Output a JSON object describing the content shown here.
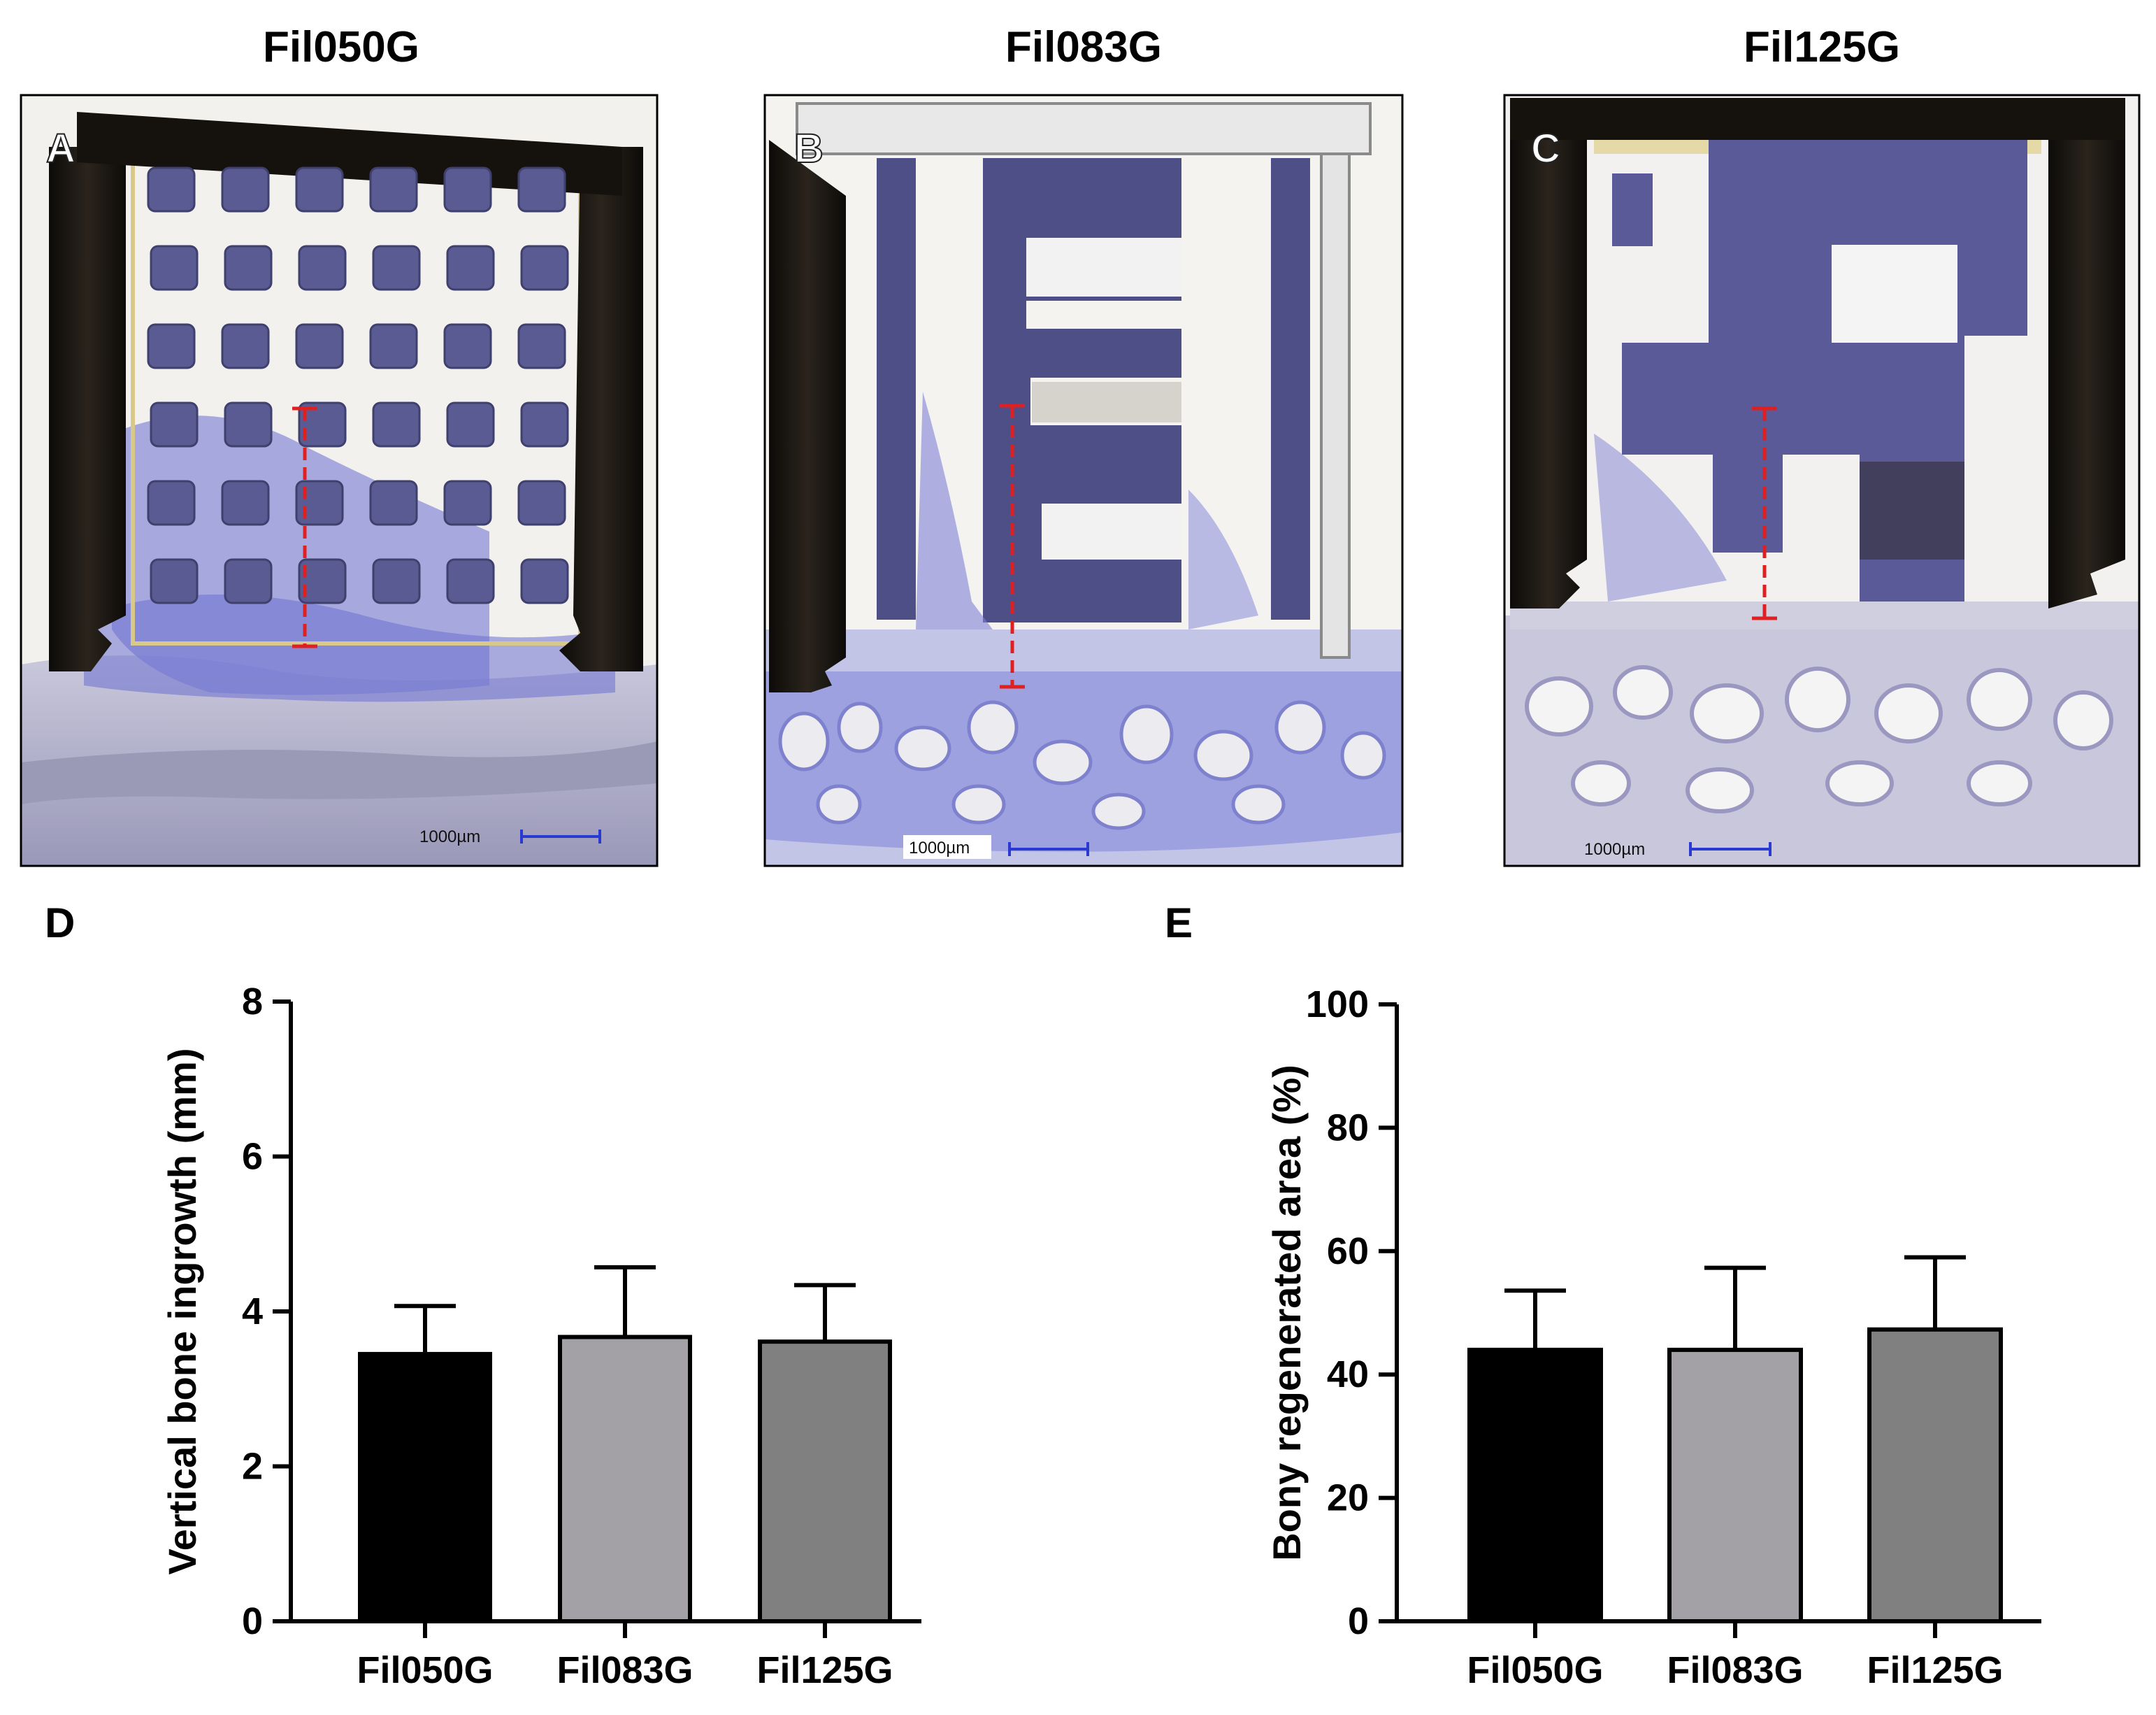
{
  "panels": {
    "titles": [
      "Fil050G",
      "Fil083G",
      "Fil125G"
    ],
    "letters": [
      "A",
      "B",
      "C",
      "D",
      "E"
    ],
    "scale_bar_label": "1000µm"
  },
  "colors": {
    "implant_dark": "#1a1410",
    "bone_blue": "#6b6fd0",
    "scaffold_blue": "#5a5a98",
    "tissue_grey": "#b5b5c8",
    "measure_red": "#e02020",
    "bar_fil050g": "#000000",
    "bar_fil083g": "#a3a1a6",
    "bar_fil125g": "#808080"
  },
  "chart_data": [
    {
      "type": "bar",
      "categories": [
        "Fil050G",
        "Fil083G",
        "Fil125G"
      ],
      "values": [
        3.45,
        3.67,
        3.61
      ],
      "errors": [
        0.62,
        0.9,
        0.73
      ],
      "ylabel": "Vertical bone ingrowth (mm)",
      "xlabel": "",
      "ylim": [
        0,
        8
      ],
      "yticks": [
        0,
        2,
        4,
        6,
        8
      ],
      "grid": false,
      "colors": [
        "#000000",
        "#a3a1a6",
        "#808080"
      ]
    },
    {
      "type": "bar",
      "categories": [
        "Fil050G",
        "Fil083G",
        "Fil125G"
      ],
      "values": [
        44,
        44,
        47.3
      ],
      "errors": [
        9.6,
        13.3,
        11.7
      ],
      "ylabel": "Bony regenerated area (%)",
      "xlabel": "",
      "ylim": [
        0,
        100
      ],
      "yticks": [
        0,
        20,
        40,
        60,
        80,
        100
      ],
      "grid": false,
      "colors": [
        "#000000",
        "#a3a1a6",
        "#808080"
      ]
    }
  ]
}
